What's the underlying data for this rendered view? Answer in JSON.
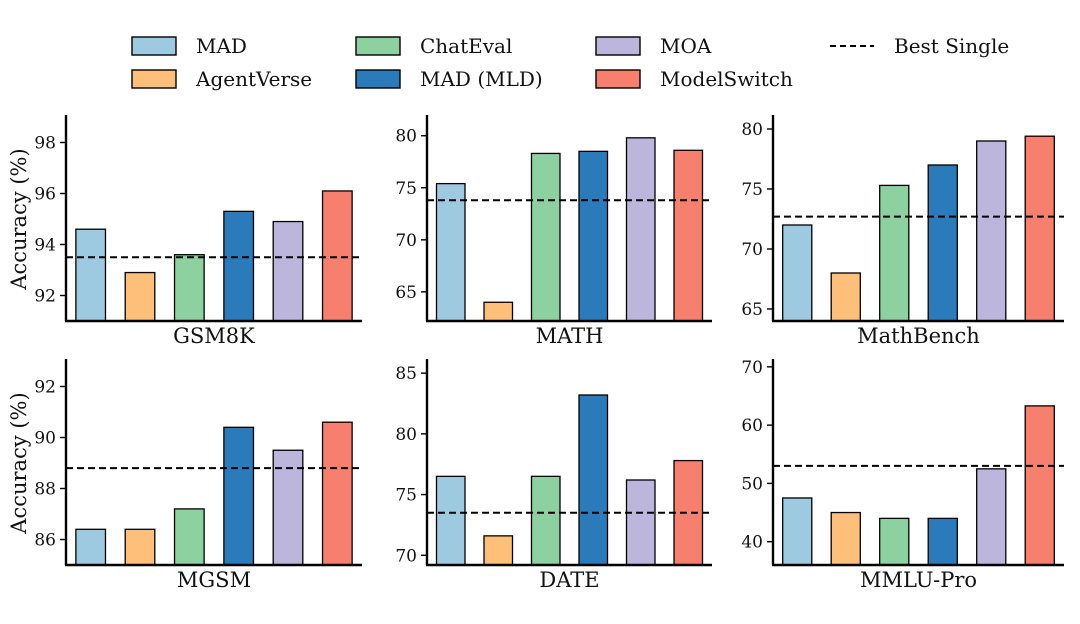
{
  "legend": [
    {
      "label": "MAD",
      "color": "#9ecae1"
    },
    {
      "label": "ChatEval",
      "color": "#8ed1a0"
    },
    {
      "label": "MOA",
      "color": "#bcb6dc"
    },
    {
      "label": "Best Single",
      "style": "dashed-line"
    },
    {
      "label": "AgentVerse",
      "color": "#fdbf7a"
    },
    {
      "label": "MAD (MLD)",
      "color": "#2b7bba"
    },
    {
      "label": "ModelSwitch",
      "color": "#f77f6e"
    }
  ],
  "chart_data": [
    {
      "type": "bar",
      "title": "GSM8K",
      "ylabel": "Accuracy (%)",
      "categories": [
        "MAD",
        "AgentVerse",
        "ChatEval",
        "MAD (MLD)",
        "MOA",
        "ModelSwitch"
      ],
      "values": [
        94.6,
        92.9,
        93.6,
        95.3,
        94.9,
        96.1
      ],
      "best_single": 93.5,
      "ylim": [
        91,
        99
      ],
      "yticks": [
        92,
        94,
        96,
        98
      ]
    },
    {
      "type": "bar",
      "title": "MATH",
      "ylabel": "",
      "categories": [
        "MAD",
        "AgentVerse",
        "ChatEval",
        "MAD (MLD)",
        "MOA",
        "ModelSwitch"
      ],
      "values": [
        75.4,
        64.0,
        78.3,
        78.5,
        79.8,
        78.6
      ],
      "best_single": 73.8,
      "ylim": [
        62.2,
        81.8
      ],
      "yticks": [
        65,
        70,
        75,
        80
      ]
    },
    {
      "type": "bar",
      "title": "MathBench",
      "ylabel": "",
      "categories": [
        "MAD",
        "AgentVerse",
        "ChatEval",
        "MAD (MLD)",
        "MOA",
        "ModelSwitch"
      ],
      "values": [
        72.0,
        68.0,
        75.3,
        77.0,
        79.0,
        79.4
      ],
      "best_single": 72.7,
      "ylim": [
        64.0,
        81.0
      ],
      "yticks": [
        65,
        70,
        75,
        80
      ]
    },
    {
      "type": "bar",
      "title": "MGSM",
      "ylabel": "Accuracy (%)",
      "categories": [
        "MAD",
        "AgentVerse",
        "ChatEval",
        "MAD (MLD)",
        "MOA",
        "ModelSwitch"
      ],
      "values": [
        86.4,
        86.4,
        87.2,
        90.4,
        89.5,
        90.6
      ],
      "best_single": 88.8,
      "ylim": [
        85.0,
        93.0
      ],
      "yticks": [
        86,
        88,
        90,
        92
      ]
    },
    {
      "type": "bar",
      "title": "DATE",
      "ylabel": "",
      "categories": [
        "MAD",
        "AgentVerse",
        "ChatEval",
        "MAD (MLD)",
        "MOA",
        "ModelSwitch"
      ],
      "values": [
        76.5,
        71.6,
        76.5,
        83.2,
        76.2,
        77.8
      ],
      "best_single": 73.5,
      "ylim": [
        69.2,
        86.0
      ],
      "yticks": [
        70,
        75,
        80,
        85
      ]
    },
    {
      "type": "bar",
      "title": "MMLU-Pro",
      "ylabel": "",
      "categories": [
        "MAD",
        "AgentVerse",
        "ChatEval",
        "MAD (MLD)",
        "MOA",
        "ModelSwitch"
      ],
      "values": [
        47.5,
        45.0,
        44.0,
        44.0,
        52.5,
        63.3
      ],
      "best_single": 53.0,
      "ylim": [
        36.0,
        71.0
      ],
      "yticks": [
        40,
        50,
        60,
        70
      ]
    }
  ]
}
